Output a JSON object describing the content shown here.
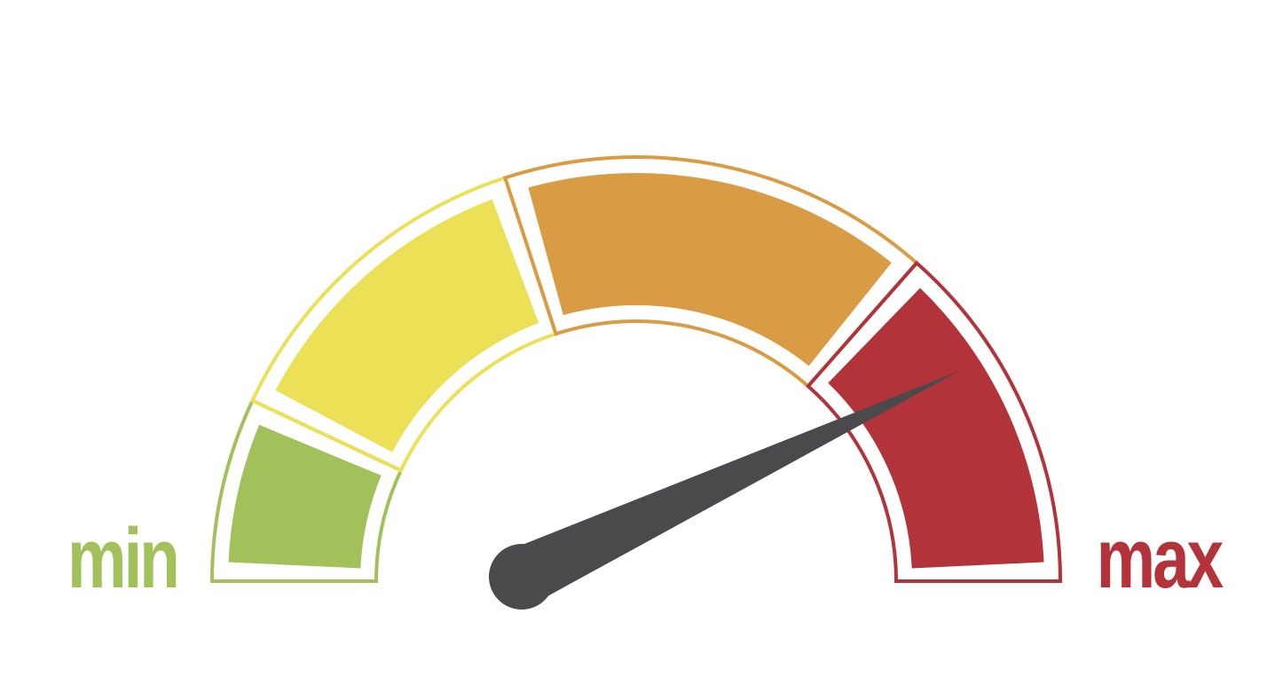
{
  "labels": {
    "min": "min",
    "max": "max"
  },
  "gauge": {
    "needle_value_fraction": 0.86,
    "needle_color": "#4a4a4c",
    "zones": [
      {
        "name": "green",
        "color": "#a2c15a",
        "from": 0.0,
        "to": 0.14
      },
      {
        "name": "yellow",
        "color": "#ece057",
        "from": 0.14,
        "to": 0.4
      },
      {
        "name": "orange",
        "color": "#d99b43",
        "from": 0.4,
        "to": 0.73
      },
      {
        "name": "red",
        "color": "#b2343a",
        "from": 0.73,
        "to": 1.0
      }
    ]
  },
  "colors": {
    "min_label": "#a2c15a",
    "max_label": "#b2343a",
    "background": "#ffffff"
  }
}
